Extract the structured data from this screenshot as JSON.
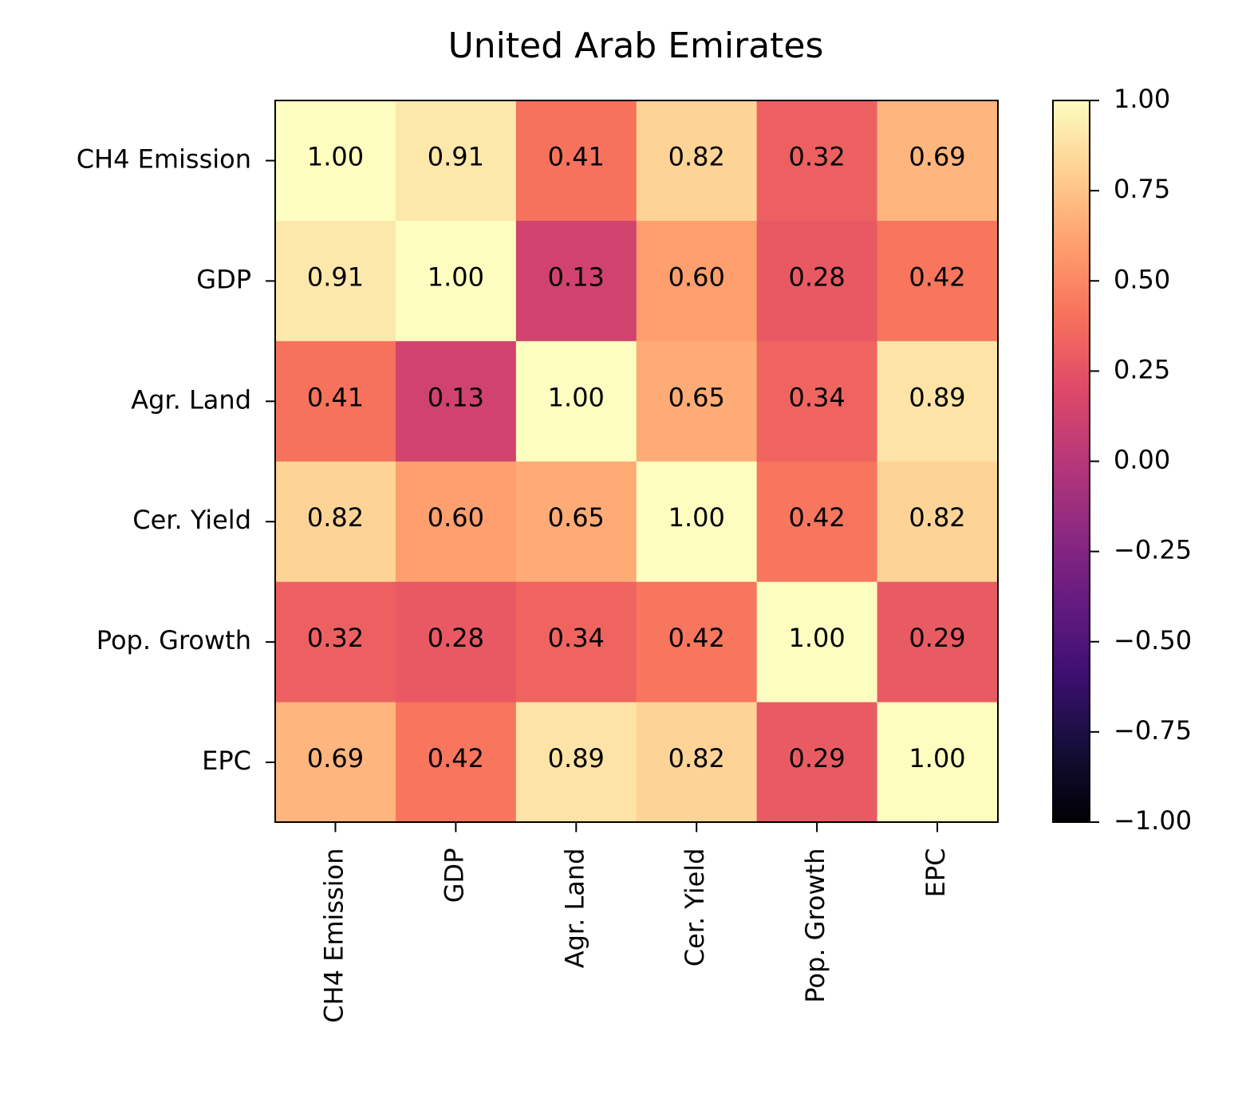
{
  "chart_data": {
    "type": "heatmap",
    "title": "United Arab Emirates",
    "row_labels": [
      "CH4 Emission",
      "GDP",
      "Agr. Land",
      "Cer. Yield",
      "Pop. Growth",
      "EPC"
    ],
    "col_labels": [
      "CH4 Emission",
      "GDP",
      "Agr. Land",
      "Cer. Yield",
      "Pop. Growth",
      "EPC"
    ],
    "values": [
      [
        1.0,
        0.91,
        0.41,
        0.82,
        0.32,
        0.69
      ],
      [
        0.91,
        1.0,
        0.13,
        0.6,
        0.28,
        0.42
      ],
      [
        0.41,
        0.13,
        1.0,
        0.65,
        0.34,
        0.89
      ],
      [
        0.82,
        0.6,
        0.65,
        1.0,
        0.42,
        0.82
      ],
      [
        0.32,
        0.28,
        0.34,
        0.42,
        1.0,
        0.29
      ],
      [
        0.69,
        0.42,
        0.89,
        0.82,
        0.29,
        1.0
      ]
    ],
    "value_labels": [
      [
        "1.00",
        "0.91",
        "0.41",
        "0.82",
        "0.32",
        "0.69"
      ],
      [
        "0.91",
        "1.00",
        "0.13",
        "0.60",
        "0.28",
        "0.42"
      ],
      [
        "0.41",
        "0.13",
        "1.00",
        "0.65",
        "0.34",
        "0.89"
      ],
      [
        "0.82",
        "0.60",
        "0.65",
        "1.00",
        "0.42",
        "0.82"
      ],
      [
        "0.32",
        "0.28",
        "0.34",
        "0.42",
        "1.00",
        "0.29"
      ],
      [
        "0.69",
        "0.42",
        "0.89",
        "0.82",
        "0.29",
        "1.00"
      ]
    ],
    "colormap": "magma",
    "vmin": -1.0,
    "vmax": 1.0,
    "colorbar": {
      "ticks": [
        1.0,
        0.75,
        0.5,
        0.25,
        0.0,
        -0.25,
        -0.5,
        -0.75,
        -1.0
      ],
      "tick_labels": [
        "1.00",
        "0.75",
        "0.50",
        "0.25",
        "0.00",
        "−0.25",
        "−0.50",
        "−0.75",
        "−1.00"
      ]
    },
    "grid": false
  }
}
